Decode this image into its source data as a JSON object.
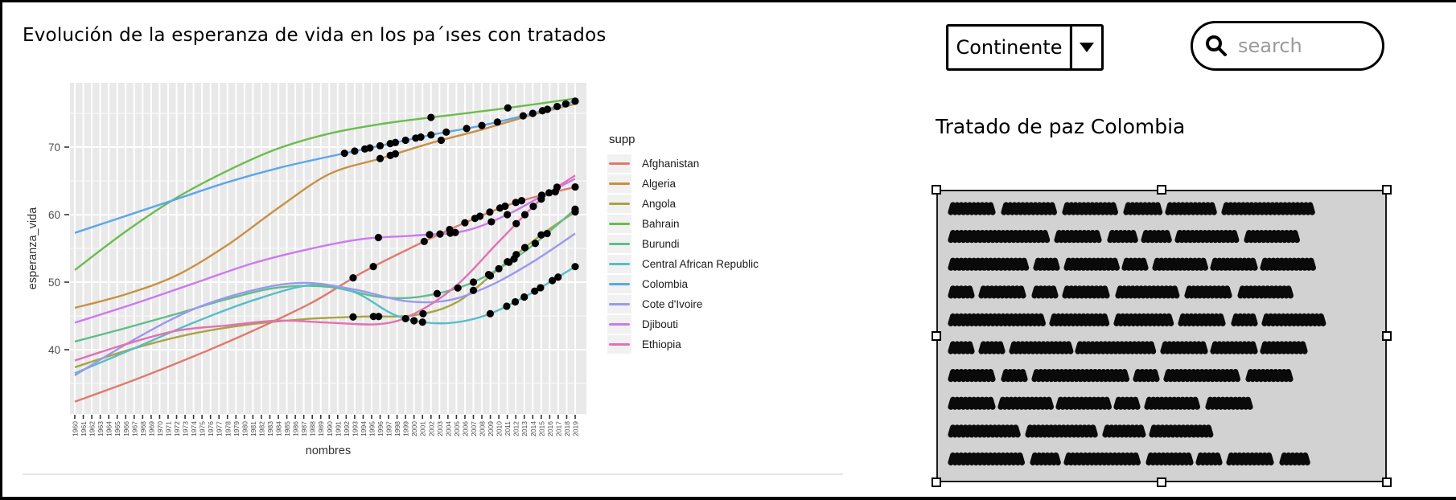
{
  "page": {
    "title": "Evolución de la esperanza de vida en los pa´ıses con tratados"
  },
  "controls": {
    "continent": {
      "label": "Continente",
      "icon": "caret-down"
    },
    "search": {
      "placeholder": "search",
      "icon": "magnifier"
    }
  },
  "right_panel": {
    "title": "Tratado de paz Colombia",
    "scribble_rows": [
      [
        52,
        62,
        62,
        38,
        56,
        108
      ],
      [
        118,
        52,
        28,
        28,
        72,
        58
      ],
      [
        92,
        24,
        58,
        24,
        58,
        48,
        62
      ],
      [
        24,
        52,
        24,
        52,
        72,
        52,
        62
      ],
      [
        112,
        66,
        66,
        52,
        24,
        68
      ],
      [
        24,
        24,
        68,
        92,
        48,
        48,
        52
      ],
      [
        52,
        24,
        112,
        24,
        88,
        48
      ],
      [
        48,
        58,
        58,
        24,
        62,
        48
      ],
      [
        82,
        82,
        44,
        68
      ],
      [
        88,
        28,
        88,
        48,
        24,
        52,
        28
      ]
    ]
  },
  "chart_data": {
    "type": "line",
    "title": "",
    "xlabel": "nombres",
    "ylabel": "esperanza_vida",
    "legend_title": "supp",
    "legend_position": "right",
    "grid": true,
    "panel_bg": "#e9e9e9",
    "grid_color": "#ffffff",
    "point_color": "#000000",
    "ylim": [
      30.5,
      79.5
    ],
    "y_ticks": [
      40,
      50,
      60,
      70
    ],
    "x_tick_years": [
      1960,
      1961,
      1962,
      1963,
      1964,
      1965,
      1966,
      1967,
      1968,
      1969,
      1970,
      1971,
      1972,
      1973,
      1974,
      1975,
      1976,
      1977,
      1978,
      1979,
      1980,
      1981,
      1982,
      1983,
      1984,
      1985,
      1986,
      1987,
      1988,
      1989,
      1990,
      1991,
      1992,
      1993,
      1994,
      1995,
      1996,
      1997,
      1998,
      1999,
      2000,
      2001,
      2002,
      2003,
      2004,
      2005,
      2006,
      2007,
      2008,
      2009,
      2010,
      2011,
      2012,
      2013,
      2014,
      2015,
      2016,
      2017,
      2018,
      2019
    ],
    "series": [
      {
        "name": "Afghanistan",
        "color": "#e07a6b",
        "points": [
          [
            1960,
            32.3
          ],
          [
            1967,
            35.5
          ],
          [
            1974,
            39.0
          ],
          [
            1981,
            42.8
          ],
          [
            1988,
            47.0
          ],
          [
            1994,
            51.5
          ],
          [
            2000,
            55.3
          ],
          [
            2006,
            58.8
          ],
          [
            2012,
            61.8
          ],
          [
            2019,
            64.1
          ]
        ],
        "dots": [
          1993,
          1995,
          2001,
          2004,
          2006,
          2007,
          2008,
          2009,
          2010,
          2011,
          2012,
          2013,
          2015,
          2017,
          2019
        ]
      },
      {
        "name": "Algeria",
        "color": "#c89042",
        "points": [
          [
            1960,
            46.2
          ],
          [
            1966,
            48.2
          ],
          [
            1972,
            51.0
          ],
          [
            1978,
            55.5
          ],
          [
            1984,
            61.0
          ],
          [
            1990,
            66.0
          ],
          [
            1996,
            68.3
          ],
          [
            2002,
            70.6
          ],
          [
            2008,
            72.6
          ],
          [
            2014,
            74.8
          ],
          [
            2019,
            76.4
          ]
        ],
        "dots": [
          1996,
          1997,
          1998,
          2003
        ]
      },
      {
        "name": "Angola",
        "color": "#a6a544",
        "points": [
          [
            1960,
            37.4
          ],
          [
            1967,
            40.2
          ],
          [
            1974,
            42.4
          ],
          [
            1981,
            43.8
          ],
          [
            1988,
            44.6
          ],
          [
            1994,
            44.9
          ],
          [
            2000,
            45.1
          ],
          [
            2005,
            47.0
          ],
          [
            2010,
            52.0
          ],
          [
            2015,
            57.0
          ],
          [
            2019,
            60.4
          ]
        ],
        "dots": [
          1993,
          1995,
          1996,
          2001,
          2007,
          2009,
          2011,
          2012,
          2013,
          2015,
          2019
        ]
      },
      {
        "name": "Bahrain",
        "color": "#6abd4d",
        "points": [
          [
            1960,
            51.8
          ],
          [
            1966,
            57.5
          ],
          [
            1972,
            62.5
          ],
          [
            1978,
            66.5
          ],
          [
            1984,
            69.8
          ],
          [
            1990,
            72.0
          ],
          [
            1996,
            73.4
          ],
          [
            2002,
            74.4
          ],
          [
            2008,
            75.3
          ],
          [
            2014,
            76.3
          ],
          [
            2019,
            77.2
          ]
        ],
        "dots": [
          2002,
          2011
        ]
      },
      {
        "name": "Burundi",
        "color": "#5fbd8c",
        "points": [
          [
            1960,
            41.2
          ],
          [
            1966,
            43.2
          ],
          [
            1972,
            45.3
          ],
          [
            1978,
            47.5
          ],
          [
            1984,
            49.2
          ],
          [
            1990,
            49.3
          ],
          [
            1996,
            47.8
          ],
          [
            2001,
            47.9
          ],
          [
            2007,
            50.0
          ],
          [
            2013,
            54.5
          ],
          [
            2019,
            60.8
          ]
        ],
        "dots": [
          2003,
          2005,
          2007,
          2009,
          2010,
          2011,
          2012,
          2014,
          2016,
          2019
        ]
      },
      {
        "name": "Central African Republic",
        "color": "#55bec6",
        "points": [
          [
            1960,
            36.5
          ],
          [
            1967,
            40.2
          ],
          [
            1974,
            44.0
          ],
          [
            1981,
            47.3
          ],
          [
            1988,
            49.6
          ],
          [
            1993,
            48.5
          ],
          [
            1998,
            45.0
          ],
          [
            2003,
            43.9
          ],
          [
            2008,
            44.9
          ],
          [
            2013,
            47.8
          ],
          [
            2019,
            52.3
          ]
        ],
        "dots": [
          1999,
          2000,
          2001,
          2009,
          2011,
          2012,
          2013,
          2014,
          2015,
          2016,
          2017,
          2019
        ]
      },
      {
        "name": "Colombia",
        "color": "#5aa7ea",
        "points": [
          [
            1960,
            57.3
          ],
          [
            1966,
            59.8
          ],
          [
            1972,
            62.3
          ],
          [
            1978,
            64.8
          ],
          [
            1984,
            66.9
          ],
          [
            1990,
            68.6
          ],
          [
            1996,
            70.2
          ],
          [
            2002,
            71.8
          ],
          [
            2008,
            73.2
          ],
          [
            2014,
            75.0
          ],
          [
            2019,
            76.8
          ]
        ],
        "dots": [
          1992,
          1993,
          1994,
          1995,
          1996,
          1997,
          1998,
          1999,
          2000,
          2001,
          2002,
          2004,
          2006,
          2008,
          2010,
          2013,
          2014,
          2015,
          2016,
          2017,
          2018,
          2019
        ]
      },
      {
        "name": "Cote d'Ivoire",
        "color": "#9b97f0",
        "points": [
          [
            1960,
            36.2
          ],
          [
            1967,
            41.5
          ],
          [
            1974,
            46.0
          ],
          [
            1981,
            48.8
          ],
          [
            1987,
            49.9
          ],
          [
            1993,
            48.9
          ],
          [
            1999,
            47.2
          ],
          [
            2004,
            47.3
          ],
          [
            2009,
            49.5
          ],
          [
            2014,
            53.0
          ],
          [
            2019,
            57.2
          ]
        ],
        "dots": []
      },
      {
        "name": "Djibouti",
        "color": "#cc79ef",
        "points": [
          [
            1960,
            44.0
          ],
          [
            1967,
            46.8
          ],
          [
            1974,
            49.8
          ],
          [
            1981,
            52.8
          ],
          [
            1988,
            55.0
          ],
          [
            1994,
            56.4
          ],
          [
            2000,
            56.9
          ],
          [
            2006,
            57.6
          ],
          [
            2011,
            60.0
          ],
          [
            2015,
            62.7
          ],
          [
            2019,
            65.3
          ]
        ],
        "dots": [
          1996,
          2002,
          2003,
          2004,
          2005,
          2009,
          2011
        ]
      },
      {
        "name": "Ethiopia",
        "color": "#e470b2",
        "points": [
          [
            1960,
            38.4
          ],
          [
            1966,
            40.8
          ],
          [
            1972,
            42.8
          ],
          [
            1978,
            43.6
          ],
          [
            1984,
            44.3
          ],
          [
            1990,
            44.0
          ],
          [
            1996,
            43.8
          ],
          [
            2000,
            45.3
          ],
          [
            2005,
            49.5
          ],
          [
            2010,
            56.0
          ],
          [
            2015,
            62.3
          ],
          [
            2019,
            65.8
          ]
        ],
        "dots": [
          2012,
          2013,
          2014,
          2015,
          2016,
          2017
        ]
      }
    ]
  }
}
